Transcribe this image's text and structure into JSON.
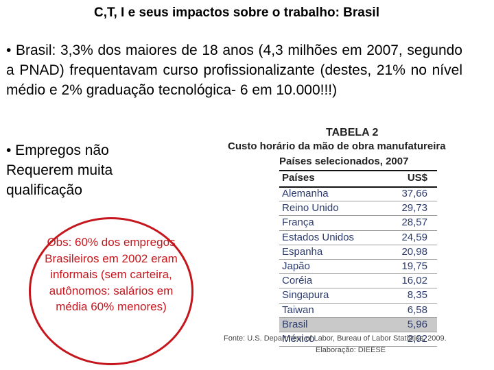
{
  "title": "C,T, I e seus impactos sobre o trabalho: Brasil",
  "paragraph1": "• Brasil: 3,3% dos maiores de 18 anos (4,3 milhões em 2007, segundo a PNAD)  frequentavam curso profissionalizante (destes, 21% no nível médio e 2% graduação tecnológica- 6 em 10.000!!!)",
  "paragraph2": "• Empregos não Requerem muita qualificação",
  "obs_note": "Obs: 60% dos empregos Brasileiros em 2002 eram informais (sem carteira, autônomos: salários em média 60% menores)",
  "table": {
    "label": "TABELA 2",
    "title": "Custo horário da mão de obra manufatureira",
    "subtitle": "Países selecionados, 2007",
    "header_country": "Países",
    "header_value": "US$",
    "rows": [
      {
        "country": "Alemanha",
        "value": "37,66"
      },
      {
        "country": "Reino Unido",
        "value": "29,73"
      },
      {
        "country": "França",
        "value": "28,57"
      },
      {
        "country": "Estados Unidos",
        "value": "24,59"
      },
      {
        "country": "Espanha",
        "value": "20,98"
      },
      {
        "country": "Japão",
        "value": "19,75"
      },
      {
        "country": "Coréia",
        "value": "16,02"
      },
      {
        "country": "Singapura",
        "value": "8,35"
      },
      {
        "country": "Taiwan",
        "value": "6,58"
      },
      {
        "country": "Brasil",
        "value": "5,96"
      },
      {
        "country": "México",
        "value": "2,92"
      }
    ],
    "highlight_row": "Brasil",
    "source": "Fonte: U.S. Department of Labor, Bureau of Labor Statistics, 2009.",
    "elaboration": "Elaboração: DIEESE"
  },
  "colors": {
    "oval_border": "#c4161c",
    "obs_text": "#c4161c",
    "table_text": "#2c3b6e",
    "highlight_bg": "#c9c9c9"
  }
}
